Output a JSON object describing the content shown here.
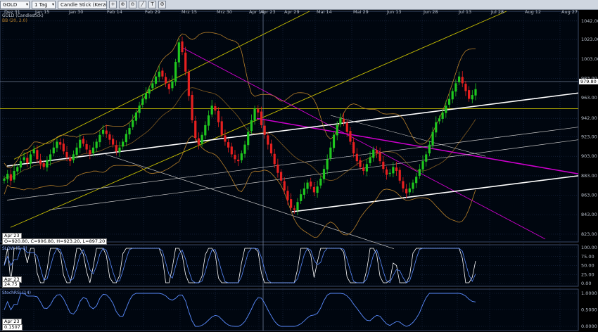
{
  "toolbar": {
    "symbol": "GOLD",
    "period": "1 Tag",
    "chart_style": "Candle Stick (Kerze)"
  },
  "main_panel": {
    "legend": [
      "GOLD (Candlestick)",
      "BB (20, 2.0)"
    ],
    "y_ticks": [
      "1042.00",
      "1023.00",
      "1003.00",
      "983.00",
      "963.00",
      "942.00",
      "923.00",
      "903.00",
      "883.00",
      "863.00",
      "843.00",
      "823.00"
    ],
    "price_label": "979.80",
    "cursor_date": "Apr 23",
    "ohlc": "O=920.80, C=906.80, H=923.20, L=897.20"
  },
  "stoch_panel": {
    "legend": "SLOW (5, 3)",
    "y_ticks": [
      "100.00",
      "75.00",
      "50.00",
      "25.00",
      "0.00"
    ],
    "cursor_date": "Apr 23",
    "value": "24.75"
  },
  "rsi_panel": {
    "legend": "StochRSI (14)",
    "y_ticks": [
      "1.0000",
      "0.5000",
      "0.0000"
    ],
    "cursor_date": "Apr 23",
    "value": "0.1507"
  },
  "x_axis_labels": [
    "Dez 31",
    "Jan 15",
    "Jan 30",
    "Feb 14",
    "Feb 29",
    "Mrz 15",
    "Mrz 30",
    "Apr 14",
    "Apr 23",
    "Apr 29",
    "Mai 14",
    "Mai 29",
    "Jun 13",
    "Jun 28",
    "Jul 13",
    "Jul 28",
    "Aug 12",
    "Aug 27"
  ],
  "colors": {
    "up": "#1fc71f",
    "down": "#e62020",
    "bollinger": "#b8802a",
    "yellow_line": "#c8c000",
    "magenta_line": "#d000d0",
    "white_line": "#ffffff",
    "grid": "#1e2e4e"
  },
  "chart_data": {
    "type": "candlestick",
    "instrument": "GOLD",
    "ylim": [
      815,
      1052
    ],
    "closes_approx": [
      880,
      885,
      878,
      888,
      892,
      898,
      902,
      896,
      905,
      910,
      900,
      895,
      892,
      899,
      905,
      912,
      918,
      915,
      908,
      902,
      898,
      905,
      912,
      920,
      916,
      910,
      905,
      912,
      918,
      925,
      930,
      926,
      920,
      915,
      908,
      912,
      918,
      926,
      932,
      940,
      948,
      955,
      962,
      968,
      972,
      978,
      985,
      990,
      985,
      978,
      972,
      980,
      1000,
      1020,
      1010,
      990,
      965,
      940,
      922,
      915,
      925,
      935,
      945,
      955,
      950,
      938,
      925,
      918,
      912,
      905,
      900,
      898,
      906,
      915,
      928,
      940,
      952,
      948,
      935,
      925,
      915,
      906,
      895,
      886,
      878,
      868,
      858,
      850,
      848,
      856,
      864,
      870,
      876,
      872,
      866,
      872,
      880,
      890,
      900,
      912,
      925,
      935,
      942,
      938,
      928,
      918,
      906,
      898,
      892,
      888,
      895,
      902,
      910,
      906,
      898,
      890,
      884,
      886,
      892,
      888,
      878,
      870,
      865,
      870,
      876,
      882,
      890,
      898,
      905,
      915,
      928,
      938,
      942,
      948,
      955,
      962,
      970,
      978,
      985,
      978,
      970,
      962,
      966,
      972
    ],
    "cursor": {
      "date": "Apr 23",
      "open": 920.8,
      "close": 906.8,
      "high": 923.2,
      "low": 897.2
    },
    "last_price": 979.8,
    "indicators": [
      "BB (20, 2.0)",
      "SLOW (5, 3)",
      "StochRSI (14)"
    ]
  }
}
